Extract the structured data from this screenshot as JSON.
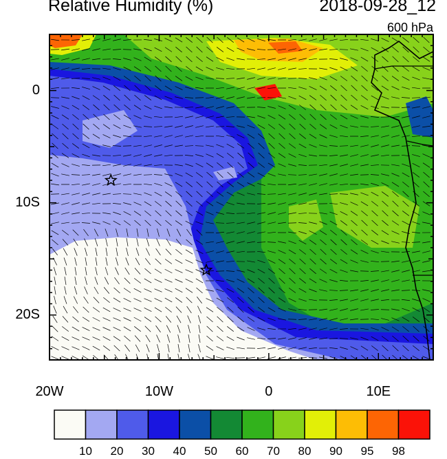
{
  "title": "Relative Humidity (%)",
  "valid_time": "2018-09-28_12",
  "level": "600 hPa",
  "map": {
    "lon_range": [
      -20,
      15
    ],
    "lat_range": [
      -24,
      5
    ],
    "lat_ticks": [
      {
        "value": 0,
        "label": "0"
      },
      {
        "value": -10,
        "label": "10S"
      },
      {
        "value": -20,
        "label": "20S"
      }
    ],
    "lon_ticks": [
      {
        "value": -20,
        "label": "20W"
      },
      {
        "value": -10,
        "label": "10W"
      },
      {
        "value": 0,
        "label": "0"
      },
      {
        "value": 10,
        "label": "10E"
      }
    ],
    "markers": [
      {
        "type": "star",
        "lon": -14.4,
        "lat": -8.0
      },
      {
        "type": "star",
        "lon": -5.7,
        "lat": -16.0
      }
    ]
  },
  "colorbar": {
    "colors": [
      "#fbfbf5",
      "#a3a8f2",
      "#4f5bea",
      "#1a16e0",
      "#0b4fa7",
      "#138934",
      "#32b21c",
      "#88d21b",
      "#e2ef07",
      "#fdbd05",
      "#fd6504",
      "#fb1208"
    ],
    "labels": [
      "10",
      "20",
      "30",
      "40",
      "50",
      "60",
      "70",
      "80",
      "90",
      "95",
      "98"
    ]
  }
}
